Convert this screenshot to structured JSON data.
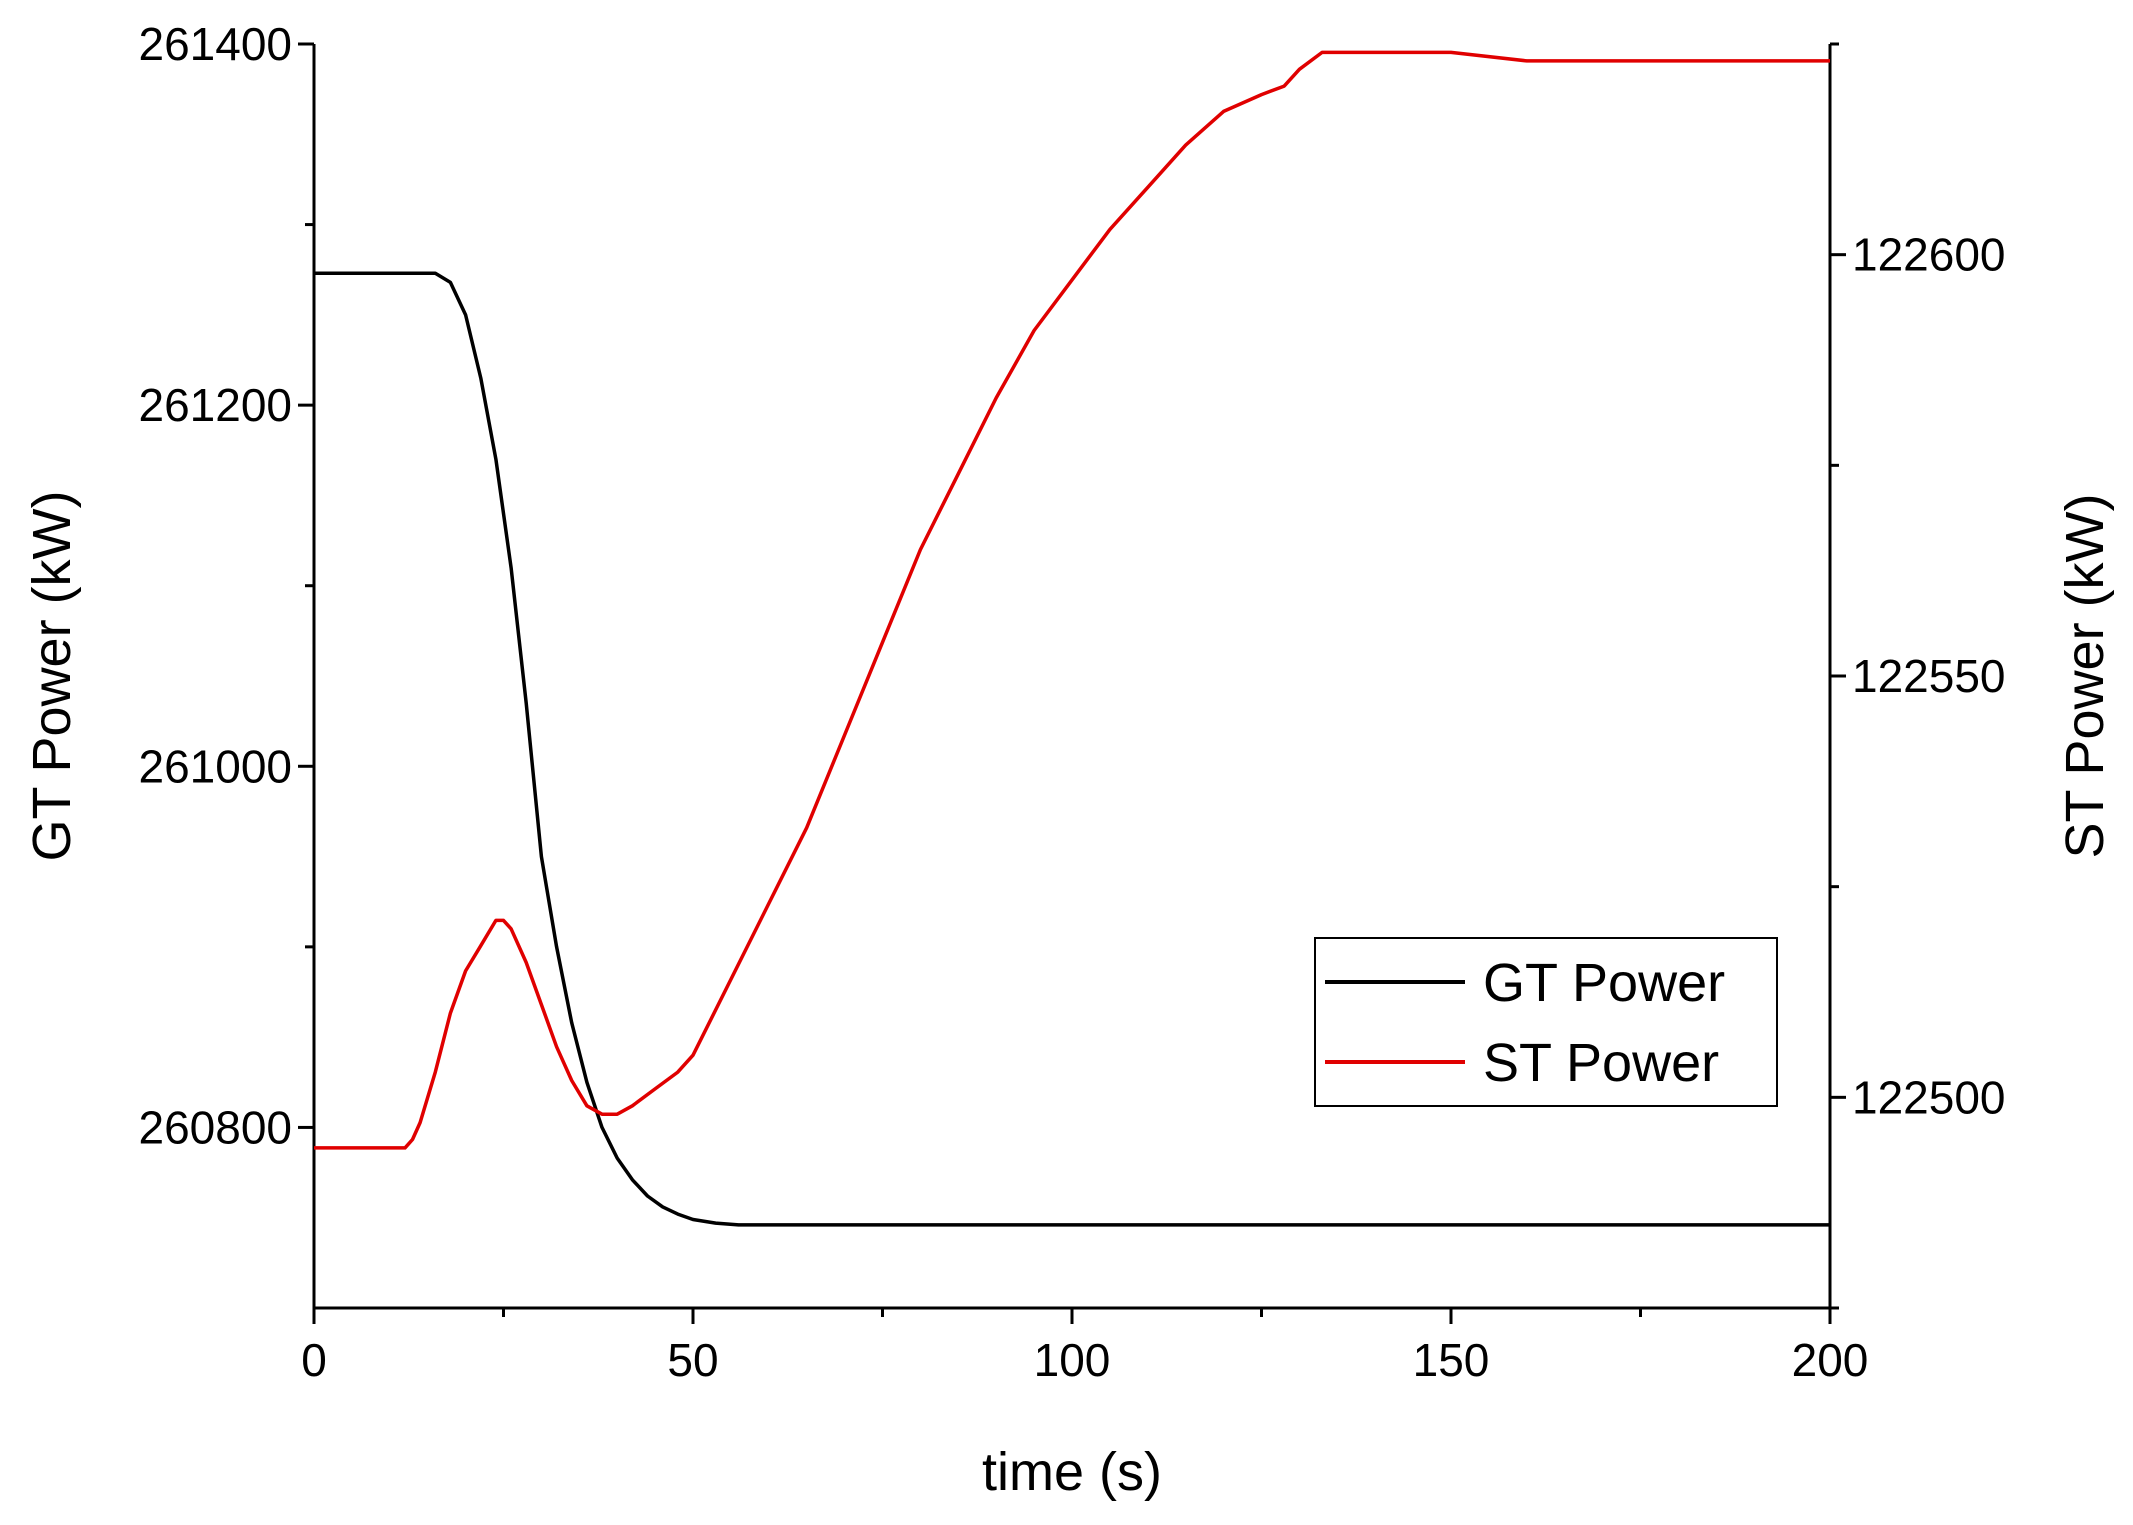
{
  "chart_data": {
    "type": "line",
    "title": "",
    "xlabel": "time (s)",
    "ylabel_left": "GT Power (kW)",
    "ylabel_right": "ST Power (kW)",
    "xlim": [
      0,
      200
    ],
    "ylim_left": [
      260700,
      261400
    ],
    "ylim_right": [
      122475,
      122625
    ],
    "x_ticks": [
      "0",
      "50",
      "100",
      "150",
      "200"
    ],
    "y_left_ticks": [
      "260800",
      "261000",
      "261200",
      "261400"
    ],
    "y_right_ticks": [
      "122500",
      "122550",
      "122600"
    ],
    "grid": false,
    "legend_position": "lower-right",
    "legend": [
      {
        "label": "GT Power",
        "color": "#000000"
      },
      {
        "label": "ST Power",
        "color": "#e00000"
      }
    ],
    "series": [
      {
        "name": "GT Power",
        "axis": "left",
        "color": "#000000",
        "x": [
          0,
          10,
          16,
          18,
          20,
          22,
          24,
          26,
          28,
          30,
          32,
          34,
          36,
          38,
          40,
          42,
          44,
          46,
          48,
          50,
          53,
          56,
          60,
          80,
          100,
          150,
          200
        ],
        "y": [
          261273,
          261273,
          261273,
          261268,
          261250,
          261215,
          261170,
          261110,
          261035,
          260950,
          260900,
          260858,
          260825,
          260800,
          260783,
          260771,
          260762,
          260756,
          260752,
          260749,
          260747,
          260746,
          260746,
          260746,
          260746,
          260746,
          260746
        ]
      },
      {
        "name": "ST Power",
        "axis": "right",
        "color": "#e00000",
        "x": [
          0,
          11,
          12,
          13,
          14,
          16,
          18,
          20,
          22,
          24,
          25,
          26,
          28,
          30,
          32,
          34,
          36,
          38,
          40,
          42,
          45,
          48,
          50,
          55,
          60,
          65,
          70,
          75,
          80,
          85,
          90,
          95,
          100,
          105,
          110,
          115,
          120,
          125,
          128,
          130,
          133,
          140,
          150,
          160,
          170,
          180,
          190,
          200
        ],
        "y": [
          122494,
          122494,
          122494,
          122495,
          122497,
          122503,
          122510,
          122515,
          122518,
          122521,
          122521,
          122520,
          122516,
          122511,
          122506,
          122502,
          122499,
          122498,
          122498,
          122499,
          122501,
          122503,
          122505,
          122514,
          122523,
          122532,
          122543,
          122554,
          122565,
          122574,
          122583,
          122591,
          122597,
          122603,
          122608,
          122613,
          122617,
          122619,
          122620,
          122622,
          122624,
          122624,
          122624,
          122623,
          122623,
          122623,
          122623,
          122623
        ]
      }
    ]
  }
}
